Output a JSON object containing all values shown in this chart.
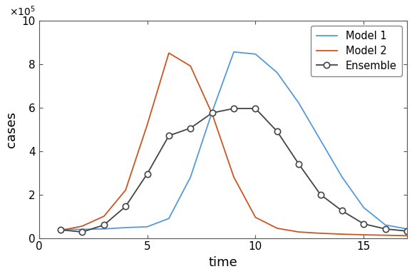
{
  "title": "",
  "xlabel": "time",
  "ylabel": "cases",
  "xlim": [
    0.5,
    17
  ],
  "ylim": [
    0,
    1000000
  ],
  "model1_x": [
    1,
    2,
    3,
    4,
    5,
    6,
    7,
    8,
    9,
    10,
    11,
    12,
    13,
    14,
    15,
    16,
    17
  ],
  "model1_y": [
    40000,
    40000,
    42000,
    48000,
    52000,
    90000,
    280000,
    580000,
    855000,
    845000,
    760000,
    620000,
    450000,
    280000,
    140000,
    60000,
    42000
  ],
  "model2_x": [
    1,
    2,
    3,
    4,
    5,
    6,
    7,
    8,
    9,
    10,
    11,
    12,
    13,
    14,
    15,
    16,
    17
  ],
  "model2_y": [
    35000,
    55000,
    100000,
    220000,
    520000,
    850000,
    790000,
    570000,
    280000,
    95000,
    45000,
    28000,
    22000,
    18000,
    15000,
    13000,
    11000
  ],
  "ensemble_x": [
    1,
    2,
    3,
    4,
    5,
    6,
    7,
    8,
    9,
    10,
    11,
    12,
    13,
    14,
    15,
    16,
    17
  ],
  "ensemble_y": [
    38000,
    28000,
    60000,
    145000,
    295000,
    470000,
    505000,
    575000,
    595000,
    595000,
    490000,
    340000,
    200000,
    125000,
    65000,
    42000,
    32000
  ],
  "color_model1": "#5599DD",
  "color_model2": "#CC5522",
  "color_ensemble": "#444444",
  "legend_labels": [
    "Model 1",
    "Model 2",
    "Ensemble"
  ],
  "xticks": [
    0,
    5,
    10,
    15
  ],
  "yticks": [
    0,
    200000,
    400000,
    600000,
    800000,
    1000000
  ],
  "ytick_labels": [
    "0",
    "2",
    "4",
    "6",
    "8",
    "10"
  ],
  "linewidth": 1.3,
  "markersize": 6,
  "tick_label_size": 11,
  "axis_label_size": 13,
  "legend_fontsize": 10.5
}
